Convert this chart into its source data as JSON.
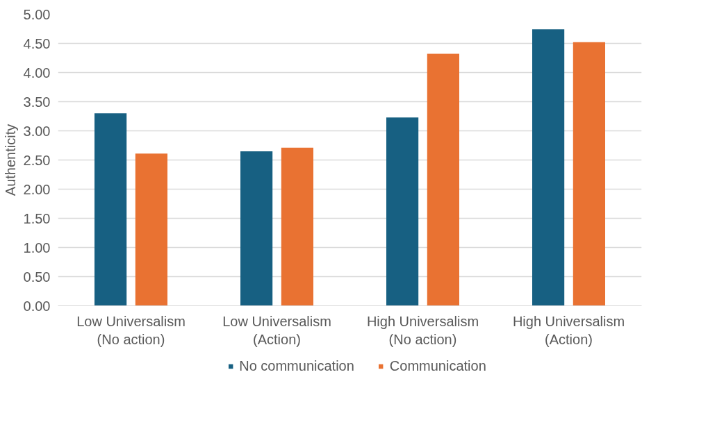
{
  "chart_data": {
    "type": "bar",
    "ylabel": "Authenticity",
    "categories": [
      "Low Universalism\n(No action)",
      "Low Universalism\n(Action)",
      "High Universalism\n(No action)",
      "High Universalism\n(Action)"
    ],
    "series": [
      {
        "name": "No communication",
        "color": "#176082",
        "values": [
          3.3,
          2.65,
          3.23,
          4.74
        ]
      },
      {
        "name": "Communication",
        "color": "#e97232",
        "values": [
          2.61,
          2.71,
          4.32,
          4.52
        ]
      }
    ],
    "ylim": [
      0,
      5
    ],
    "yticks": [
      {
        "value": 0,
        "label": "0.00"
      },
      {
        "value": 0.5,
        "label": "0.50"
      },
      {
        "value": 1,
        "label": "1.00"
      },
      {
        "value": 1.5,
        "label": "1.50"
      },
      {
        "value": 2,
        "label": "2.00"
      },
      {
        "value": 2.5,
        "label": "2.50"
      },
      {
        "value": 3,
        "label": "3.00"
      },
      {
        "value": 3.5,
        "label": "3.50"
      },
      {
        "value": 4,
        "label": "4.00"
      },
      {
        "value": 4.5,
        "label": "4.50"
      },
      {
        "value": 5,
        "label": "5.00"
      }
    ],
    "grid": "y",
    "legend": "bottom"
  }
}
